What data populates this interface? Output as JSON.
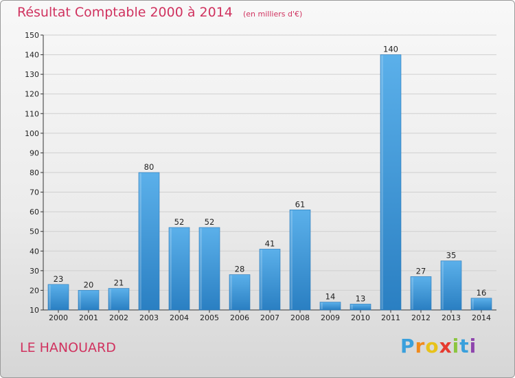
{
  "title": "Résultat Comptable 2000 à 2014",
  "unit": "(en milliers d'€)",
  "commune": "LE HANOUARD",
  "brand": "Proxiti",
  "colors": {
    "bar_light": "#5bb0ea",
    "bar_dark": "#2a7fc2",
    "title": "#d0325f",
    "grid": "#cfcfcf"
  },
  "chart_data": {
    "type": "bar",
    "title": "Résultat Comptable 2000 à 2014",
    "subtitle": "(en milliers d'€)",
    "xlabel": "",
    "ylabel": "",
    "categories": [
      "2000",
      "2001",
      "2002",
      "2003",
      "2004",
      "2005",
      "2006",
      "2007",
      "2008",
      "2009",
      "2010",
      "2011",
      "2012",
      "2013",
      "2014"
    ],
    "values": [
      23,
      20,
      21,
      80,
      52,
      52,
      28,
      41,
      61,
      14,
      13,
      140,
      27,
      35,
      16
    ],
    "ylim": [
      10,
      150
    ],
    "yticks": [
      10,
      20,
      30,
      40,
      50,
      60,
      70,
      80,
      90,
      100,
      110,
      120,
      130,
      140,
      150
    ],
    "grid": true
  }
}
